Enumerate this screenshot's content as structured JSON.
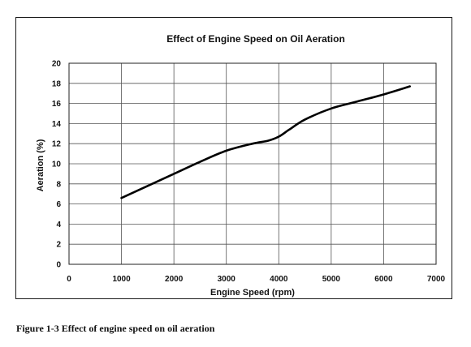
{
  "chart_data": {
    "type": "line",
    "title": "Effect of Engine Speed on Oil Aeration",
    "xlabel": "Engine Speed (rpm)",
    "ylabel": "Aeration (%)",
    "xlim": [
      0,
      7000
    ],
    "ylim": [
      0,
      20
    ],
    "xticks": [
      "0",
      "1000",
      "2000",
      "3000",
      "4000",
      "5000",
      "6000",
      "7000"
    ],
    "yticks": [
      "0",
      "2",
      "4",
      "6",
      "8",
      "10",
      "12",
      "14",
      "16",
      "18",
      "20"
    ],
    "grid": true,
    "legend": "none",
    "series": [
      {
        "x": [
          1000,
          1500,
          2000,
          2500,
          3000,
          3500,
          3800,
          4000,
          4200,
          4500,
          5000,
          5500,
          6000,
          6500
        ],
        "y": [
          6.6,
          7.8,
          9.0,
          10.2,
          11.3,
          12.0,
          12.3,
          12.7,
          13.4,
          14.4,
          15.5,
          16.2,
          16.9,
          17.7
        ]
      }
    ],
    "line_color": "#000000"
  },
  "caption": "Figure 1-3 Effect of engine speed on oil aeration"
}
